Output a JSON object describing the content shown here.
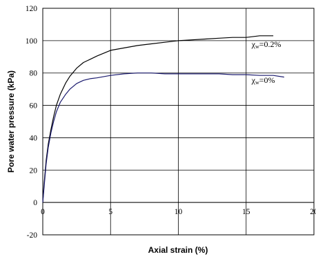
{
  "chart_data": {
    "type": "line",
    "title": "",
    "xlabel": "Axial strain (%)",
    "ylabel": "Pore water pressure (kPa)",
    "xlim": [
      0,
      20
    ],
    "ylim": [
      -20,
      120
    ],
    "x_ticks": [
      "0",
      "5",
      "10",
      "15",
      "20"
    ],
    "y_ticks": [
      "120",
      "100",
      "80",
      "60",
      "40",
      "20",
      "0",
      "-20"
    ],
    "grid": true,
    "series": [
      {
        "name": "χw=0.2%",
        "color": "#000000",
        "x": [
          0,
          0.1,
          0.25,
          0.4,
          0.6,
          0.8,
          1.0,
          1.3,
          1.7,
          2.0,
          2.5,
          3.0,
          3.5,
          4.0,
          5.0,
          6.0,
          7.0,
          8.0,
          9.0,
          10.0,
          11.0,
          12.0,
          13.0,
          14.0,
          15.0,
          16.0,
          17.0
        ],
        "y": [
          0,
          12,
          26,
          36,
          45,
          53,
          60,
          67,
          74,
          78,
          83,
          86.5,
          88.5,
          90.5,
          94,
          95.5,
          97,
          98,
          99,
          100,
          100.5,
          101,
          101.5,
          102,
          102,
          103,
          103
        ]
      },
      {
        "name": "χw=0%",
        "color": "#1a1a6e",
        "x": [
          0,
          0.1,
          0.25,
          0.4,
          0.6,
          0.8,
          1.0,
          1.3,
          1.7,
          2.0,
          2.5,
          3.0,
          3.5,
          4.0,
          5.0,
          6.0,
          7.0,
          8.0,
          9.0,
          10.0,
          11.0,
          12.0,
          13.0,
          14.0,
          15.0,
          16.0,
          17.0,
          17.8
        ],
        "y": [
          0,
          10,
          24,
          34,
          43,
          50,
          56,
          62,
          67,
          70,
          73.5,
          75.5,
          76.5,
          77,
          78.5,
          79.5,
          80,
          80,
          79.5,
          79.5,
          79.5,
          79.5,
          79.5,
          79,
          79,
          78.5,
          78.5,
          77.5
        ]
      }
    ],
    "annotations": [
      {
        "main": "χ",
        "sub": "w",
        "rest": "=0.2%",
        "x": 15.4,
        "y": 96
      },
      {
        "main": "χ",
        "sub": "w",
        "rest": "=0%",
        "x": 15.4,
        "y": 74
      }
    ]
  }
}
